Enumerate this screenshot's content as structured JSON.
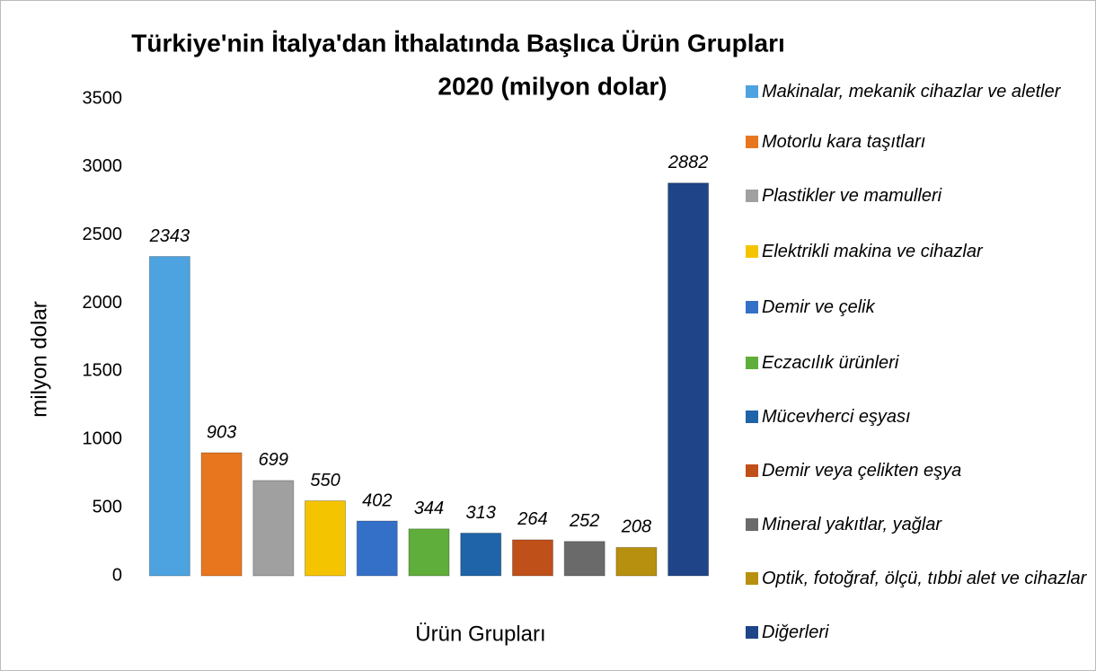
{
  "chart_data": {
    "type": "bar",
    "title": "Türkiye'nin İtalya'dan İthalatında Başlıca Ürün Grupları",
    "subtitle": "2020 (milyon dolar)",
    "xlabel": "Ürün Grupları",
    "ylabel": "milyon dolar",
    "ylim": [
      0,
      3500
    ],
    "yticks": [
      0,
      500,
      1000,
      1500,
      2000,
      2500,
      3000,
      3500
    ],
    "grid": false,
    "legend": "right",
    "series": [
      {
        "name": "Makinalar, mekanik cihazlar ve aletler",
        "color": "#4da3e0",
        "values": [
          2343
        ]
      },
      {
        "name": "Motorlu kara taşıtları",
        "color": "#e8761f",
        "values": [
          903
        ]
      },
      {
        "name": "Plastikler ve mamulleri",
        "color": "#a0a0a0",
        "values": [
          699
        ]
      },
      {
        "name": "Elektrikli makina ve cihazlar",
        "color": "#f5c400",
        "values": [
          550
        ]
      },
      {
        "name": "Demir ve çelik",
        "color": "#3570c8",
        "values": [
          402
        ]
      },
      {
        "name": "Eczacılık ürünleri",
        "color": "#5fae3b",
        "values": [
          344
        ]
      },
      {
        "name": "Mücevherci eşyası",
        "color": "#1f63a8",
        "values": [
          313
        ]
      },
      {
        "name": "Demir veya çelikten eşya",
        "color": "#c0501a",
        "values": [
          264
        ]
      },
      {
        "name": "Mineral yakıtlar, yağlar",
        "color": "#6a6a6a",
        "values": [
          252
        ]
      },
      {
        "name": "Optik, fotoğraf, ölçü, tıbbi alet ve cihazlar",
        "color": "#b8900f",
        "values": [
          208
        ]
      },
      {
        "name": "Diğerleri",
        "color": "#1f4488",
        "values": [
          2882
        ]
      }
    ]
  }
}
